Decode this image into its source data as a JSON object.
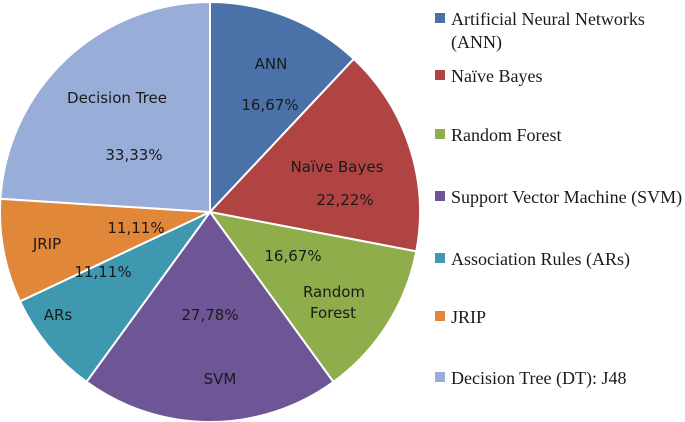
{
  "chart_data": {
    "type": "pie",
    "title": "",
    "slices": [
      {
        "key": "ann",
        "value": 16.67,
        "inner_label": "ANN",
        "value_label": "16,67%",
        "legend": "Artificial Neural Networks (ANN)",
        "color": "#4a72a8"
      },
      {
        "key": "naive-bayes",
        "value": 22.22,
        "inner_label": "Naïve Bayes",
        "value_label": "22,22%",
        "legend": "Naïve Bayes",
        "color": "#b04442"
      },
      {
        "key": "random-forest",
        "value": 16.67,
        "inner_label": "Random Forest",
        "value_label": "16,67%",
        "legend": "Random Forest",
        "color": "#8fad4a"
      },
      {
        "key": "svm",
        "value": 27.78,
        "inner_label": "SVM",
        "value_label": "27,78%",
        "legend": "Support Vector Machine (SVM)",
        "color": "#6d5596"
      },
      {
        "key": "ars",
        "value": 11.11,
        "inner_label": "ARs",
        "value_label": "11,11%",
        "legend": "Association Rules (ARs)",
        "color": "#3e98b0"
      },
      {
        "key": "jrip",
        "value": 11.11,
        "inner_label": "JRIP",
        "value_label": "11,11%",
        "legend": "JRIP",
        "color": "#e0873a"
      },
      {
        "key": "decision-tree",
        "value": 33.33,
        "inner_label": "Decision Tree",
        "value_label": "33,33%",
        "legend": "Decision Tree (DT):  J48",
        "color": "#98aed8"
      }
    ],
    "legend_position": "right"
  }
}
